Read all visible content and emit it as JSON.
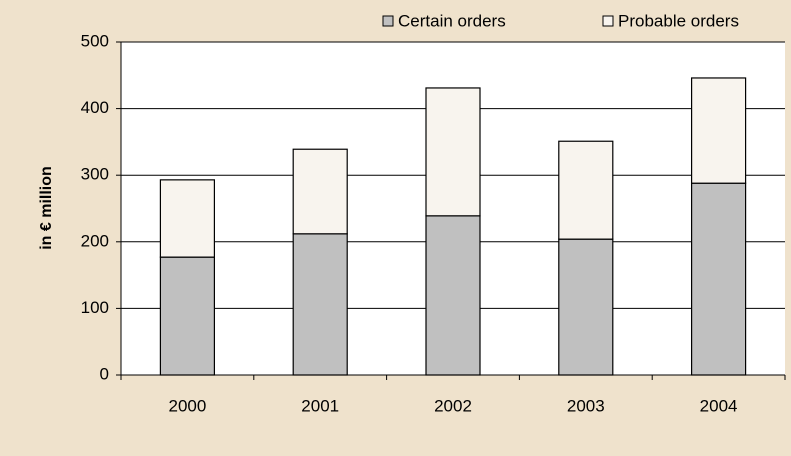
{
  "chart_data": {
    "type": "stacked-bar",
    "y_label": "in € million",
    "categories": [
      "2000",
      "2001",
      "2002",
      "2003",
      "2004"
    ],
    "series": [
      {
        "name": "Certain orders",
        "color": "#c0c0c0",
        "values": [
          177,
          212,
          239,
          204,
          288
        ]
      },
      {
        "name": "Probable orders",
        "color": "#f8f4ee",
        "values": [
          116,
          127,
          192,
          147,
          158
        ]
      }
    ],
    "ylim": [
      0,
      500
    ],
    "yticks": [
      0,
      100,
      200,
      300,
      400,
      500
    ],
    "grid": true,
    "legend": "top"
  }
}
